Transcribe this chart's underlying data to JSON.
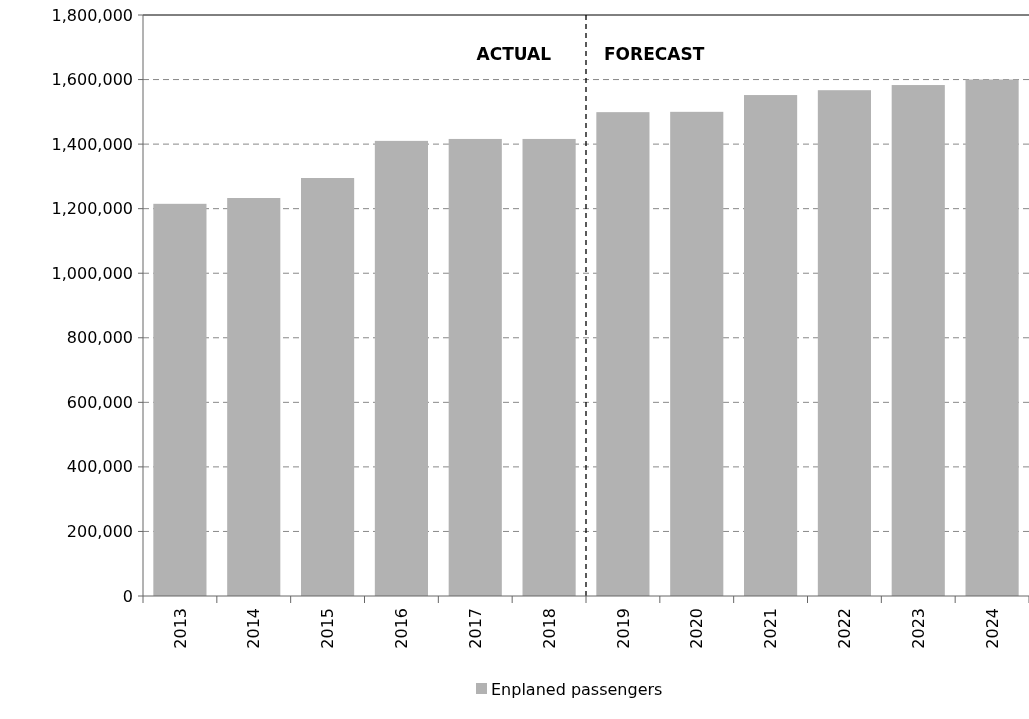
{
  "chart_data": {
    "type": "bar",
    "categories": [
      "2013",
      "2014",
      "2015",
      "2016",
      "2017",
      "2018",
      "2019",
      "2020",
      "2021",
      "2022",
      "2023",
      "2024"
    ],
    "series": [
      {
        "name": "Enplaned passengers",
        "color": "#b2b2b2",
        "values": [
          1215000,
          1233000,
          1295000,
          1410000,
          1416000,
          1416000,
          1499000,
          1500000,
          1552000,
          1567000,
          1583000,
          1600000
        ]
      }
    ],
    "ylim": [
      0,
      1800000
    ],
    "yticks": [
      {
        "value": 0,
        "label": "0"
      },
      {
        "value": 200000,
        "label": "200,000"
      },
      {
        "value": 400000,
        "label": "400,000"
      },
      {
        "value": 600000,
        "label": "600,000"
      },
      {
        "value": 800000,
        "label": "800,000"
      },
      {
        "value": 1000000,
        "label": "1,000,000"
      },
      {
        "value": 1200000,
        "label": "1,200,000"
      },
      {
        "value": 1400000,
        "label": "1,400,000"
      },
      {
        "value": 1600000,
        "label": "1,600,000"
      },
      {
        "value": 1800000,
        "label": "1,800,000"
      }
    ],
    "grid": "y",
    "legend": "bottom",
    "annotations": [
      "ACTUAL",
      "FORECAST"
    ]
  }
}
